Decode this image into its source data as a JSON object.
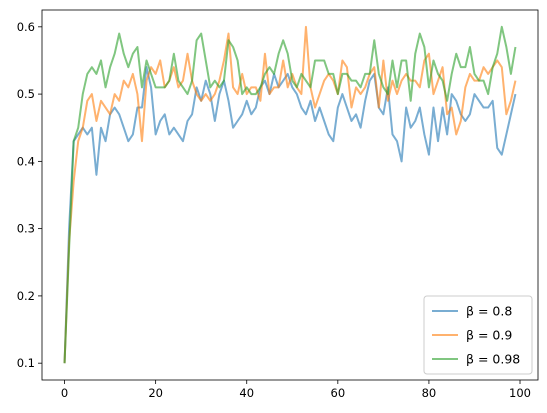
{
  "chart_data": {
    "type": "line",
    "xlim": [
      -4.95,
      103.95
    ],
    "ylim": [
      0.075,
      0.625
    ],
    "xticks": [
      0,
      20,
      40,
      60,
      80,
      100
    ],
    "yticks": [
      0.1,
      0.2,
      0.3,
      0.4,
      0.5,
      0.6
    ],
    "grid": false,
    "legend_position": "lower-right",
    "series": [
      {
        "name": "β = 0.8",
        "color": "#1f77b4",
        "values": [
          0.1,
          0.3,
          0.43,
          0.44,
          0.45,
          0.44,
          0.45,
          0.38,
          0.45,
          0.43,
          0.47,
          0.48,
          0.47,
          0.45,
          0.43,
          0.44,
          0.48,
          0.48,
          0.54,
          0.51,
          0.44,
          0.46,
          0.47,
          0.44,
          0.45,
          0.44,
          0.43,
          0.46,
          0.47,
          0.51,
          0.49,
          0.52,
          0.5,
          0.46,
          0.5,
          0.52,
          0.49,
          0.45,
          0.46,
          0.47,
          0.49,
          0.47,
          0.48,
          0.51,
          0.52,
          0.5,
          0.53,
          0.51,
          0.52,
          0.53,
          0.51,
          0.5,
          0.48,
          0.47,
          0.49,
          0.46,
          0.48,
          0.46,
          0.44,
          0.43,
          0.48,
          0.5,
          0.48,
          0.46,
          0.47,
          0.45,
          0.49,
          0.52,
          0.53,
          0.48,
          0.47,
          0.51,
          0.44,
          0.43,
          0.4,
          0.48,
          0.45,
          0.46,
          0.48,
          0.44,
          0.41,
          0.48,
          0.43,
          0.48,
          0.44,
          0.5,
          0.49,
          0.47,
          0.46,
          0.47,
          0.5,
          0.49,
          0.48,
          0.48,
          0.49,
          0.42,
          0.41,
          0.44,
          0.47,
          0.5
        ]
      },
      {
        "name": "β = 0.9",
        "color": "#ff7f0e",
        "values": [
          0.1,
          0.28,
          0.37,
          0.43,
          0.45,
          0.49,
          0.5,
          0.46,
          0.49,
          0.48,
          0.47,
          0.5,
          0.49,
          0.52,
          0.51,
          0.53,
          0.5,
          0.43,
          0.52,
          0.54,
          0.53,
          0.55,
          0.51,
          0.52,
          0.54,
          0.51,
          0.52,
          0.56,
          0.52,
          0.5,
          0.49,
          0.5,
          0.49,
          0.5,
          0.52,
          0.55,
          0.59,
          0.51,
          0.5,
          0.53,
          0.5,
          0.51,
          0.51,
          0.49,
          0.56,
          0.5,
          0.51,
          0.51,
          0.55,
          0.51,
          0.53,
          0.51,
          0.5,
          0.6,
          0.51,
          0.48,
          0.5,
          0.52,
          0.53,
          0.52,
          0.5,
          0.55,
          0.54,
          0.48,
          0.51,
          0.5,
          0.51,
          0.53,
          0.54,
          0.48,
          0.55,
          0.49,
          0.52,
          0.5,
          0.52,
          0.53,
          0.52,
          0.52,
          0.51,
          0.55,
          0.56,
          0.5,
          0.52,
          0.54,
          0.47,
          0.48,
          0.44,
          0.46,
          0.51,
          0.53,
          0.52,
          0.52,
          0.54,
          0.53,
          0.54,
          0.55,
          0.54,
          0.47,
          0.49,
          0.52
        ]
      },
      {
        "name": "β = 0.98",
        "color": "#2ca02c",
        "values": [
          0.1,
          0.27,
          0.43,
          0.45,
          0.5,
          0.53,
          0.54,
          0.53,
          0.55,
          0.51,
          0.54,
          0.56,
          0.59,
          0.56,
          0.54,
          0.56,
          0.57,
          0.51,
          0.55,
          0.53,
          0.51,
          0.51,
          0.51,
          0.52,
          0.56,
          0.52,
          0.51,
          0.5,
          0.52,
          0.58,
          0.59,
          0.55,
          0.51,
          0.52,
          0.51,
          0.52,
          0.58,
          0.57,
          0.55,
          0.5,
          0.51,
          0.5,
          0.5,
          0.51,
          0.53,
          0.54,
          0.53,
          0.56,
          0.58,
          0.56,
          0.52,
          0.51,
          0.53,
          0.52,
          0.51,
          0.55,
          0.55,
          0.55,
          0.53,
          0.53,
          0.5,
          0.53,
          0.53,
          0.52,
          0.52,
          0.51,
          0.53,
          0.53,
          0.58,
          0.53,
          0.51,
          0.5,
          0.55,
          0.51,
          0.55,
          0.55,
          0.49,
          0.56,
          0.59,
          0.57,
          0.51,
          0.55,
          0.53,
          0.52,
          0.49,
          0.53,
          0.56,
          0.54,
          0.54,
          0.57,
          0.53,
          0.52,
          0.52,
          0.5,
          0.54,
          0.56,
          0.6,
          0.57,
          0.53,
          0.57
        ]
      }
    ]
  }
}
